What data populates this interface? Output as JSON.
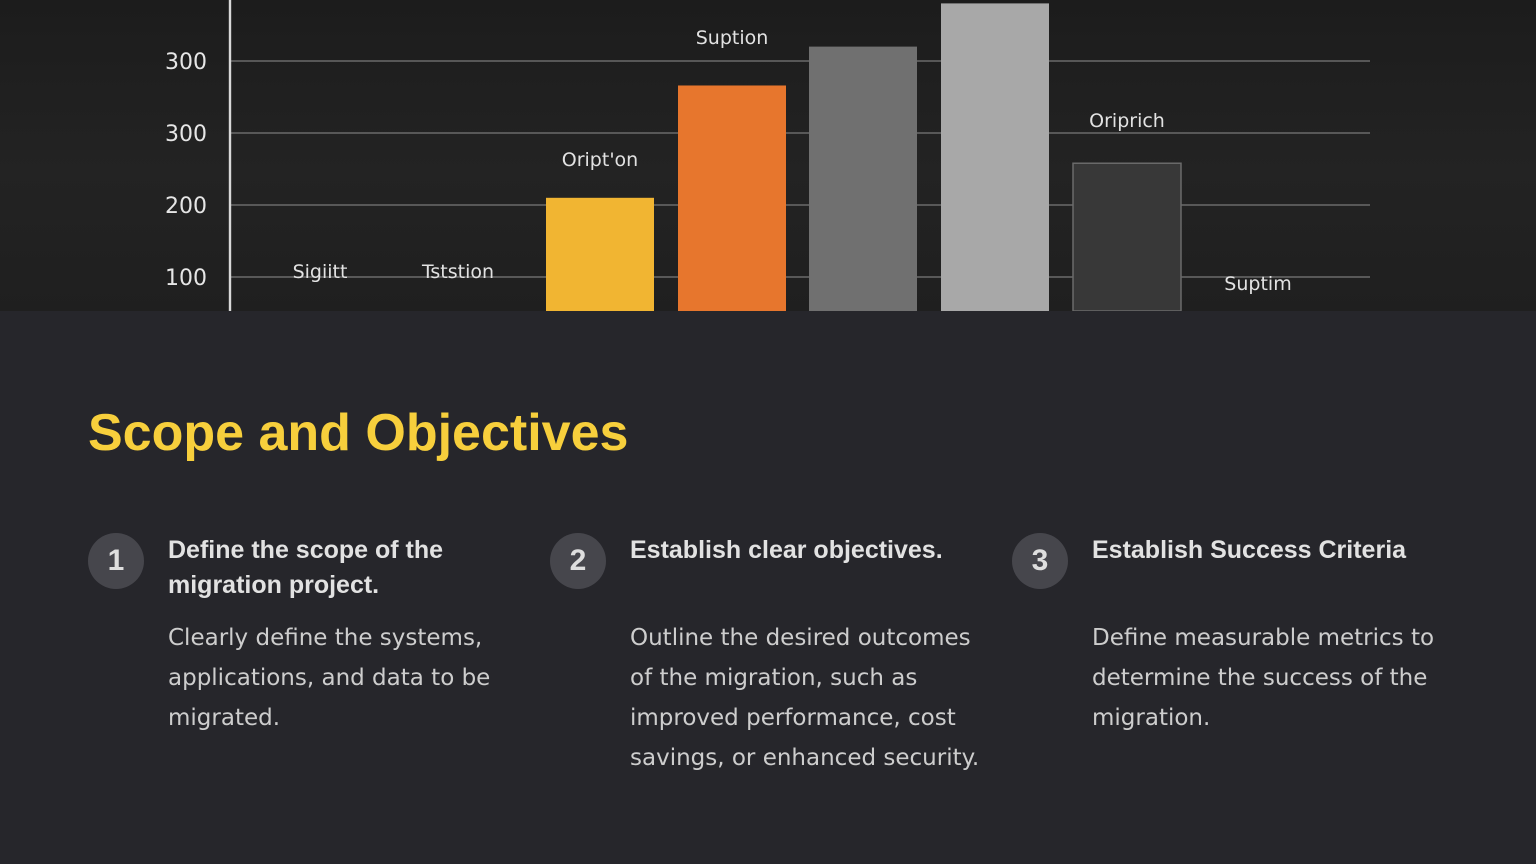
{
  "slide": {
    "title": "Scope and Objectives",
    "colors": {
      "background": "#26262b",
      "title": "#f7cf3c",
      "number_badge": "#46464c",
      "heading_text": "#e2e2e2",
      "body_text": "#cdcdcd"
    }
  },
  "steps": [
    {
      "number": "1",
      "heading": "Define the scope of the migration project.",
      "description": "Clearly define the systems, applications, and data to be migrated."
    },
    {
      "number": "2",
      "heading": "Establish clear objectives.",
      "description": "Outline the desired outcomes of the migration, such as improved performance, cost savings, or enhanced security."
    },
    {
      "number": "3",
      "heading": "Establish Success Criteria",
      "description": "Define measurable metrics to determine the success of the migration."
    }
  ],
  "chart_data": {
    "type": "bar",
    "title": "",
    "xlabel": "",
    "ylabel": "",
    "y_tick_labels": [
      "300",
      "300",
      "200",
      "100"
    ],
    "ylim": [
      60,
      480
    ],
    "grid": true,
    "legend": "none",
    "categories": [
      "Sigiitt",
      "Tsts tion",
      "Oript'on",
      "Suption",
      "",
      "",
      "Oriprich",
      "Suptim"
    ],
    "values": [
      null,
      null,
      210,
      366,
      420,
      480,
      258,
      null
    ],
    "label_positions": [
      100,
      100,
      225,
      395,
      0,
      0,
      290,
      100
    ],
    "bar_colors": [
      "",
      "",
      "#f1b532",
      "#e7762d",
      "#707070",
      "#a6a6a6",
      "#383838",
      ""
    ],
    "bar_label_texts": [
      "Sigiitt",
      "Tststion",
      "Oript'on",
      "Suption",
      "",
      "",
      "Oriprich",
      "Suptim"
    ]
  }
}
